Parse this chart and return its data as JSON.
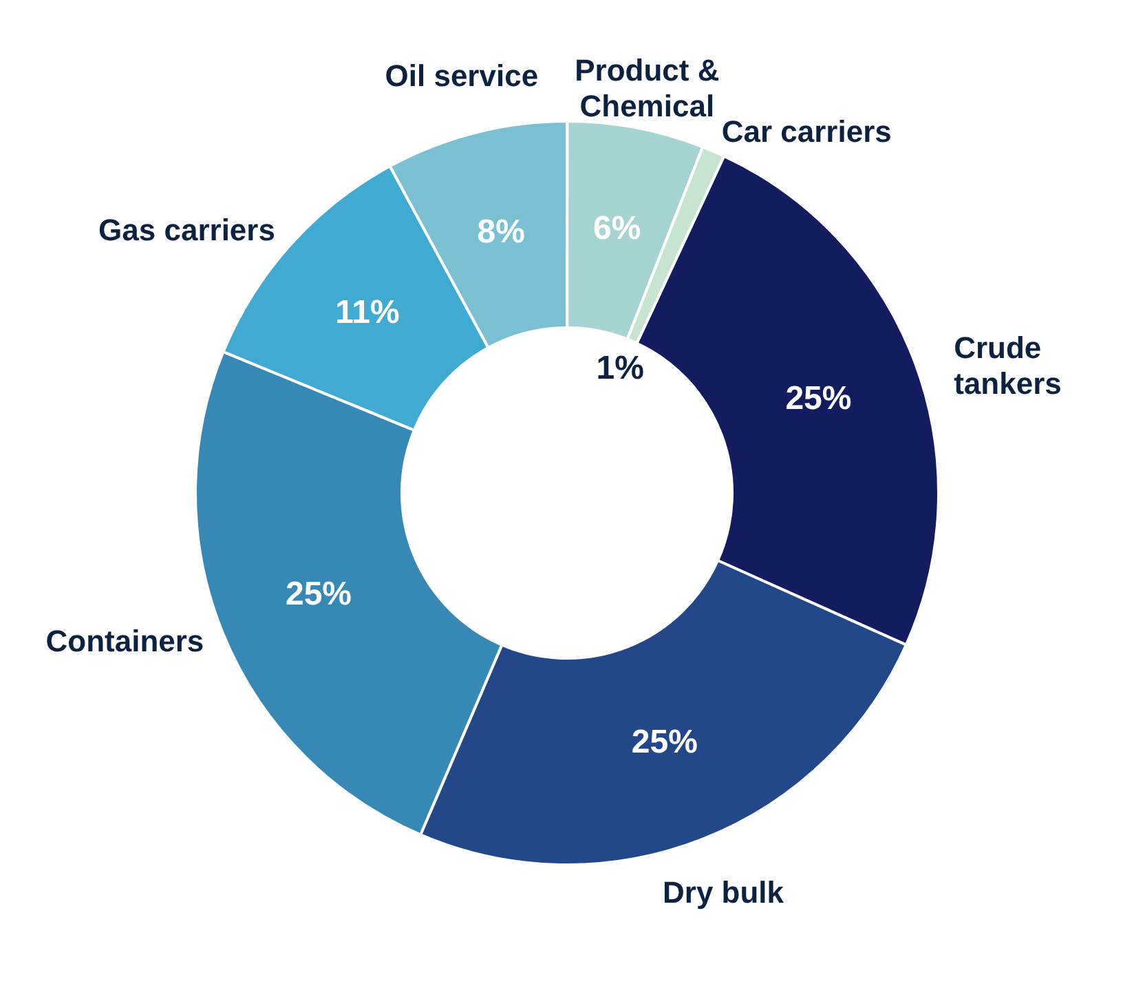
{
  "chart_data": {
    "type": "donut",
    "categories": [
      "Crude tankers",
      "Dry bulk",
      "Containers",
      "Gas carriers",
      "Oil service",
      "Product & Chemical",
      "Car carriers"
    ],
    "values": [
      25,
      25,
      25,
      11,
      8,
      6,
      1
    ],
    "value_labels": [
      "25%",
      "25%",
      "25%",
      "11%",
      "8%",
      "6%",
      "1%"
    ],
    "colors": [
      "#141c60",
      "#22488a",
      "#3789b5",
      "#41aad2",
      "#7bc0d2",
      "#a6d4d2",
      "#c6e4d0"
    ],
    "legend": false
  }
}
